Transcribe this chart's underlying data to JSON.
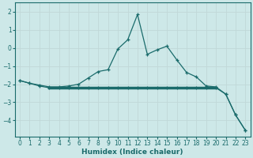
{
  "xlabel": "Humidex (Indice chaleur)",
  "background_color": "#cde8e8",
  "grid_color": "#c0d8d8",
  "line_color": "#1a6b6b",
  "line1_x": [
    0,
    1,
    2,
    3,
    4,
    5,
    6,
    7,
    8,
    9,
    10,
    11,
    12,
    13,
    14,
    15,
    16,
    17,
    18,
    19,
    20,
    21,
    22,
    23
  ],
  "line1_y": [
    -1.8,
    -1.95,
    -2.05,
    -2.15,
    -2.15,
    -2.1,
    -2.0,
    -1.65,
    -1.3,
    -1.2,
    -0.05,
    0.45,
    1.85,
    -0.35,
    -0.1,
    0.1,
    -0.65,
    -1.35,
    -1.6,
    -2.1,
    -2.15,
    -2.55,
    -3.7,
    -4.55
  ],
  "line2_x": [
    0,
    1,
    2,
    3,
    4,
    5,
    6,
    7,
    8,
    9,
    10,
    11,
    12,
    13,
    14,
    15,
    16,
    17,
    18,
    19,
    20,
    21,
    22,
    23
  ],
  "line2_y": [
    -1.8,
    -1.95,
    -2.1,
    -2.2,
    -2.2,
    -2.2,
    -2.2,
    -2.2,
    -2.2,
    -2.2,
    -2.2,
    -2.2,
    -2.2,
    -2.2,
    -2.2,
    -2.2,
    -2.2,
    -2.2,
    -2.2,
    -2.2,
    -2.2,
    -2.55,
    -3.7,
    -4.55
  ],
  "line3_x": [
    3,
    20
  ],
  "line3_y": [
    -2.2,
    -2.2
  ],
  "xlim": [
    -0.5,
    23.5
  ],
  "ylim": [
    -4.9,
    2.5
  ],
  "yticks": [
    -4,
    -3,
    -2,
    -1,
    0,
    1,
    2
  ],
  "xticks": [
    0,
    1,
    2,
    3,
    4,
    5,
    6,
    7,
    8,
    9,
    10,
    11,
    12,
    13,
    14,
    15,
    16,
    17,
    18,
    19,
    20,
    21,
    22,
    23
  ]
}
